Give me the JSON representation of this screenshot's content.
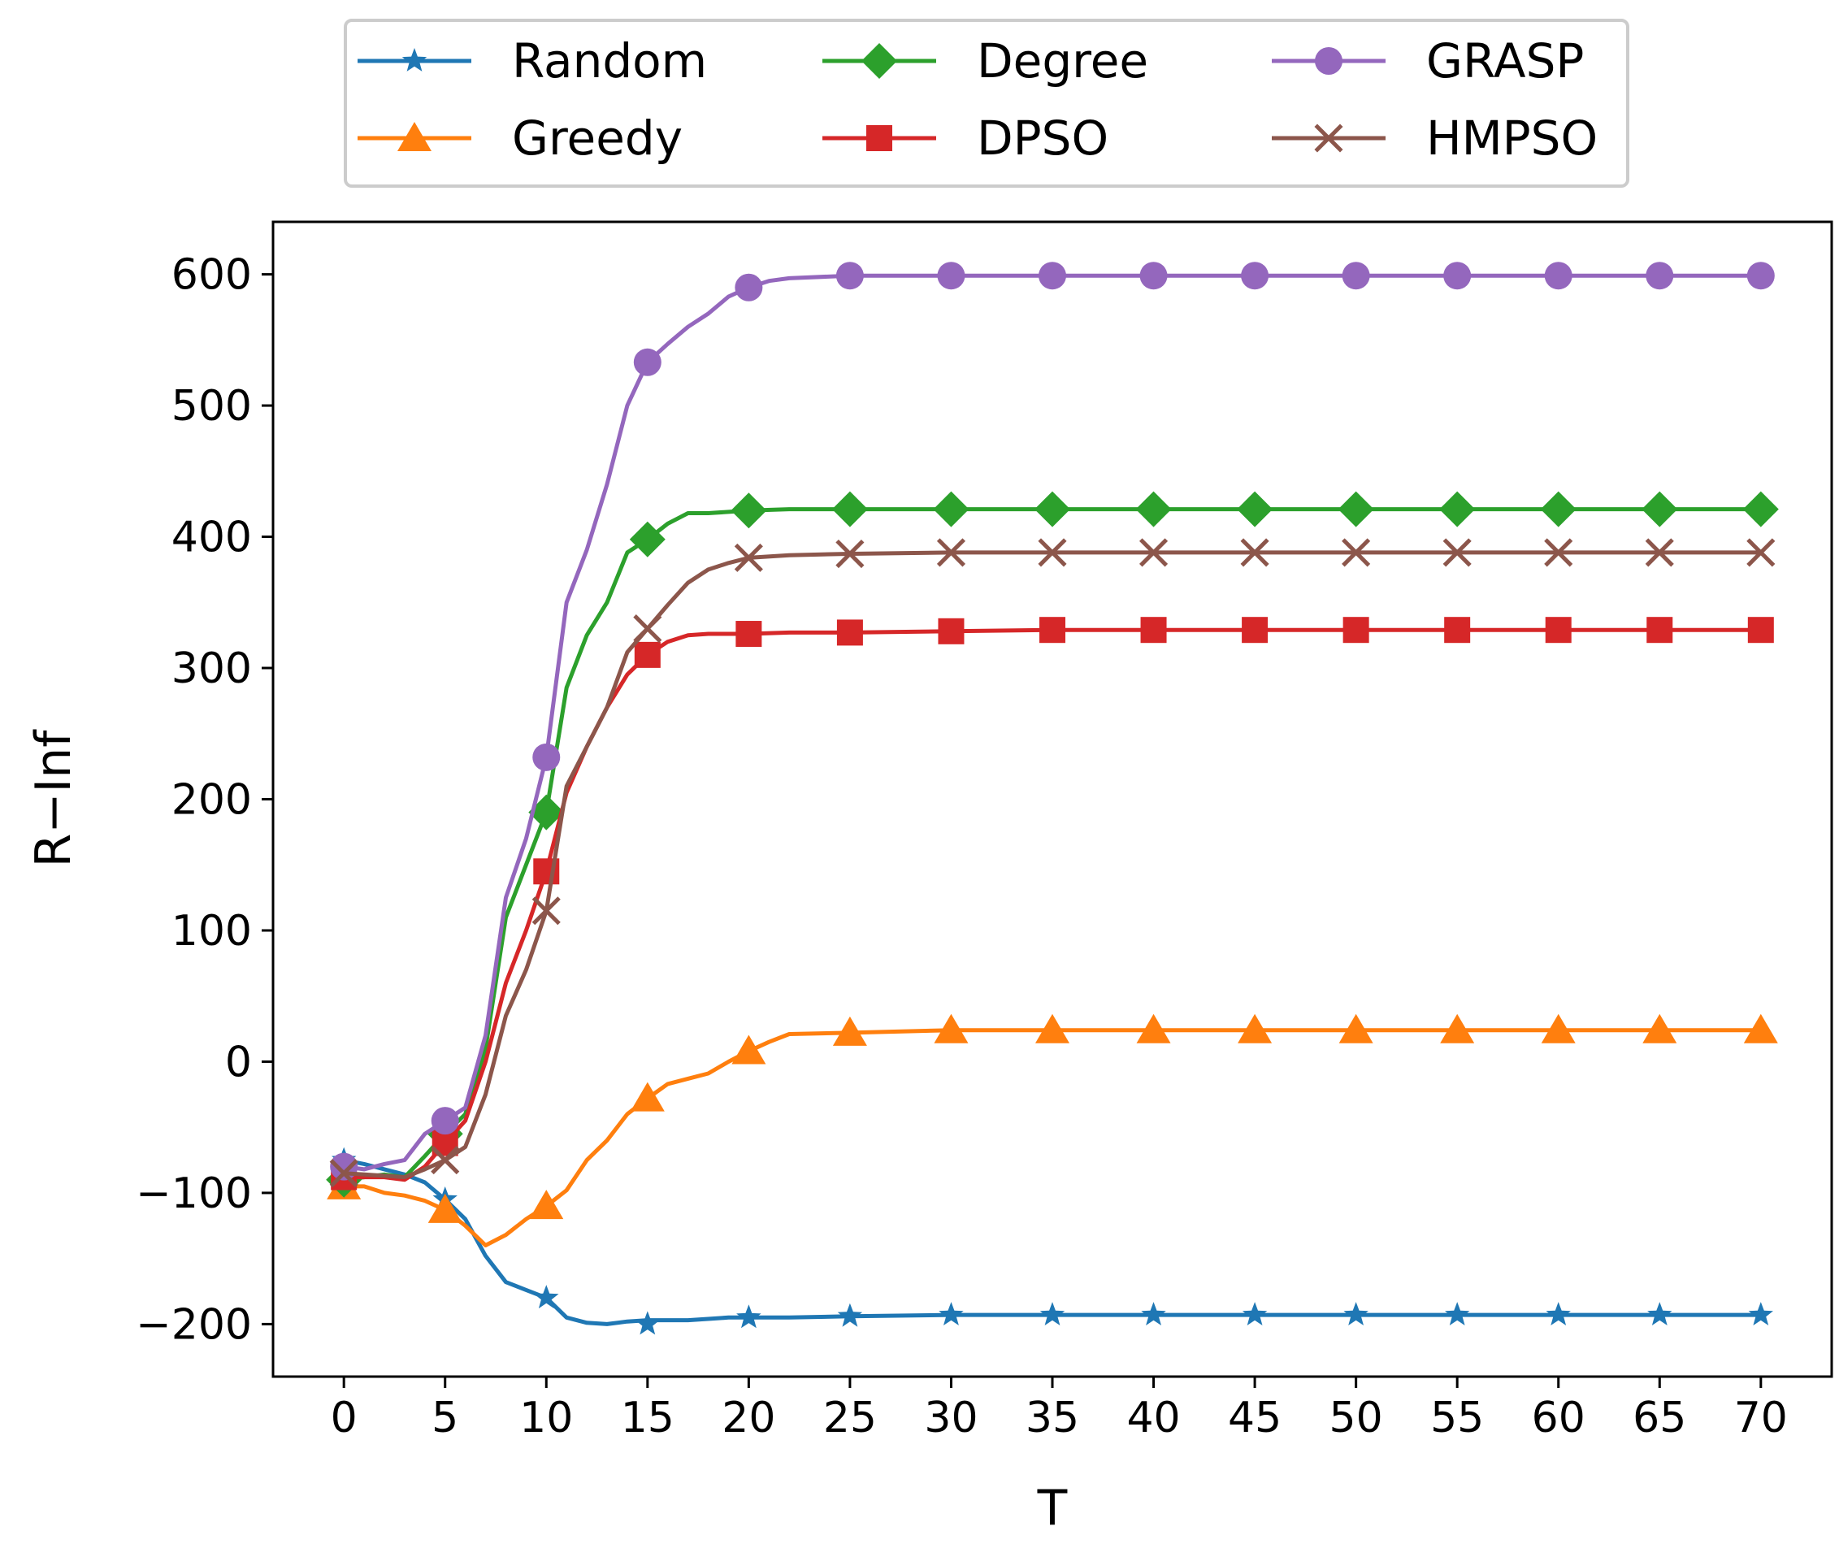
{
  "chart_data": {
    "type": "line",
    "title": "",
    "xlabel": "T",
    "ylabel": "R−Inf",
    "xlim": [
      -3.5,
      73.5
    ],
    "ylim": [
      -240,
      640
    ],
    "x_ticks": [
      0,
      5,
      10,
      15,
      20,
      25,
      30,
      35,
      40,
      45,
      50,
      55,
      60,
      65,
      70
    ],
    "x_tick_labels": [
      "0",
      "5",
      "10",
      "15",
      "20",
      "25",
      "30",
      "35",
      "40",
      "45",
      "50",
      "55",
      "60",
      "65",
      "70"
    ],
    "y_ticks": [
      -200,
      -100,
      0,
      100,
      200,
      300,
      400,
      500,
      600
    ],
    "y_tick_labels": [
      "−200",
      "−100",
      "0",
      "100",
      "200",
      "300",
      "400",
      "500",
      "600"
    ],
    "grid": false,
    "legend_position": "top-center, above plot, 3 columns",
    "series": [
      {
        "name": "Random",
        "color": "#1f77b4",
        "marker": "star",
        "x": [
          0,
          1,
          2,
          3,
          4,
          5,
          6,
          7,
          8,
          9,
          10,
          11,
          12,
          13,
          14,
          15,
          16,
          17,
          18,
          19,
          20,
          22,
          25,
          30,
          35,
          40,
          45,
          50,
          55,
          60,
          65,
          70
        ],
        "values": [
          -75,
          -78,
          -82,
          -86,
          -92,
          -105,
          -120,
          -148,
          -168,
          -174,
          -180,
          -195,
          -199,
          -200,
          -198,
          -197,
          -197,
          -197,
          -196,
          -195,
          -195,
          -195,
          -194,
          -193,
          -193,
          -193,
          -193,
          -193,
          -193,
          -193,
          -193,
          -193
        ],
        "marker_x": [
          0,
          5,
          10,
          15,
          20,
          25,
          30,
          35,
          40,
          45,
          50,
          55,
          60,
          65,
          70
        ],
        "marker_values": [
          -75,
          -105,
          -180,
          -200,
          -195,
          -194,
          -193,
          -193,
          -193,
          -193,
          -193,
          -193,
          -193,
          -193,
          -193
        ]
      },
      {
        "name": "Greedy",
        "color": "#ff7f0e",
        "marker": "triangle",
        "x": [
          0,
          1,
          2,
          3,
          4,
          5,
          6,
          7,
          8,
          9,
          10,
          11,
          12,
          13,
          14,
          15,
          16,
          17,
          18,
          19,
          20,
          21,
          22,
          25,
          30,
          35,
          40,
          45,
          50,
          55,
          60,
          65,
          70
        ],
        "values": [
          -95,
          -95,
          -100,
          -102,
          -106,
          -113,
          -125,
          -140,
          -132,
          -120,
          -110,
          -98,
          -75,
          -60,
          -40,
          -28,
          -17,
          -13,
          -9,
          0,
          8,
          15,
          21,
          22,
          24,
          24,
          24,
          24,
          24,
          24,
          24,
          24,
          24
        ],
        "marker_x": [
          0,
          5,
          10,
          15,
          20,
          25,
          30,
          35,
          40,
          45,
          50,
          55,
          60,
          65,
          70
        ],
        "marker_values": [
          -95,
          -113,
          -110,
          -28,
          8,
          22,
          24,
          24,
          24,
          24,
          24,
          24,
          24,
          24,
          24
        ]
      },
      {
        "name": "Degree",
        "color": "#2ca02c",
        "marker": "diamond",
        "x": [
          0,
          1,
          2,
          3,
          4,
          5,
          6,
          7,
          8,
          9,
          10,
          11,
          12,
          13,
          14,
          15,
          16,
          17,
          18,
          19,
          20,
          22,
          25,
          30,
          35,
          40,
          45,
          50,
          55,
          60,
          65,
          70
        ],
        "values": [
          -90,
          -88,
          -86,
          -88,
          -72,
          -55,
          -40,
          10,
          110,
          150,
          190,
          285,
          325,
          350,
          388,
          398,
          410,
          418,
          418,
          419,
          420,
          421,
          421,
          421,
          421,
          421,
          421,
          421,
          421,
          421,
          421,
          421
        ],
        "marker_x": [
          0,
          5,
          10,
          15,
          20,
          25,
          30,
          35,
          40,
          45,
          50,
          55,
          60,
          65,
          70
        ],
        "marker_values": [
          -90,
          -55,
          190,
          398,
          420,
          421,
          421,
          421,
          421,
          421,
          421,
          421,
          421,
          421,
          421
        ]
      },
      {
        "name": "DPSO",
        "color": "#d62728",
        "marker": "square",
        "x": [
          0,
          1,
          2,
          3,
          4,
          5,
          6,
          7,
          8,
          9,
          10,
          11,
          12,
          13,
          14,
          15,
          16,
          17,
          18,
          19,
          20,
          22,
          25,
          30,
          35,
          40,
          45,
          50,
          55,
          60,
          65,
          70
        ],
        "values": [
          -88,
          -88,
          -88,
          -90,
          -80,
          -62,
          -45,
          0,
          60,
          100,
          145,
          205,
          240,
          270,
          295,
          310,
          320,
          325,
          326,
          326,
          326,
          327,
          327,
          328,
          329,
          329,
          329,
          329,
          329,
          329,
          329,
          329
        ],
        "marker_x": [
          0,
          5,
          10,
          15,
          20,
          25,
          30,
          35,
          40,
          45,
          50,
          55,
          60,
          65,
          70
        ],
        "marker_values": [
          -88,
          -62,
          145,
          310,
          326,
          327,
          328,
          329,
          329,
          329,
          329,
          329,
          329,
          329,
          329
        ]
      },
      {
        "name": "GRASP",
        "color": "#9467bd",
        "marker": "circle",
        "x": [
          0,
          1,
          2,
          3,
          4,
          5,
          6,
          7,
          8,
          9,
          10,
          11,
          12,
          13,
          14,
          15,
          16,
          17,
          18,
          19,
          20,
          21,
          22,
          25,
          30,
          35,
          40,
          45,
          50,
          55,
          60,
          65,
          70
        ],
        "values": [
          -80,
          -82,
          -78,
          -75,
          -55,
          -45,
          -35,
          20,
          125,
          170,
          232,
          350,
          390,
          440,
          500,
          533,
          547,
          560,
          570,
          583,
          590,
          595,
          597,
          599,
          599,
          599,
          599,
          599,
          599,
          599,
          599,
          599,
          599
        ],
        "marker_x": [
          0,
          5,
          10,
          15,
          20,
          25,
          30,
          35,
          40,
          45,
          50,
          55,
          60,
          65,
          70
        ],
        "marker_values": [
          -80,
          -45,
          232,
          533,
          590,
          599,
          599,
          599,
          599,
          599,
          599,
          599,
          599,
          599,
          599
        ]
      },
      {
        "name": "HMPSO",
        "color": "#8c564b",
        "marker": "x",
        "x": [
          0,
          1,
          2,
          3,
          4,
          5,
          6,
          7,
          8,
          9,
          10,
          11,
          12,
          13,
          14,
          15,
          16,
          17,
          18,
          19,
          20,
          22,
          25,
          30,
          35,
          40,
          45,
          50,
          55,
          60,
          65,
          70
        ],
        "values": [
          -85,
          -86,
          -87,
          -88,
          -82,
          -75,
          -65,
          -25,
          35,
          70,
          115,
          210,
          240,
          270,
          312,
          330,
          348,
          365,
          375,
          380,
          384,
          386,
          387,
          388,
          388,
          388,
          388,
          388,
          388,
          388,
          388,
          388
        ],
        "marker_x": [
          0,
          5,
          10,
          15,
          20,
          25,
          30,
          35,
          40,
          45,
          50,
          55,
          60,
          65,
          70
        ],
        "marker_values": [
          -85,
          -75,
          115,
          330,
          384,
          387,
          388,
          388,
          388,
          388,
          388,
          388,
          388,
          388,
          388
        ]
      }
    ]
  }
}
